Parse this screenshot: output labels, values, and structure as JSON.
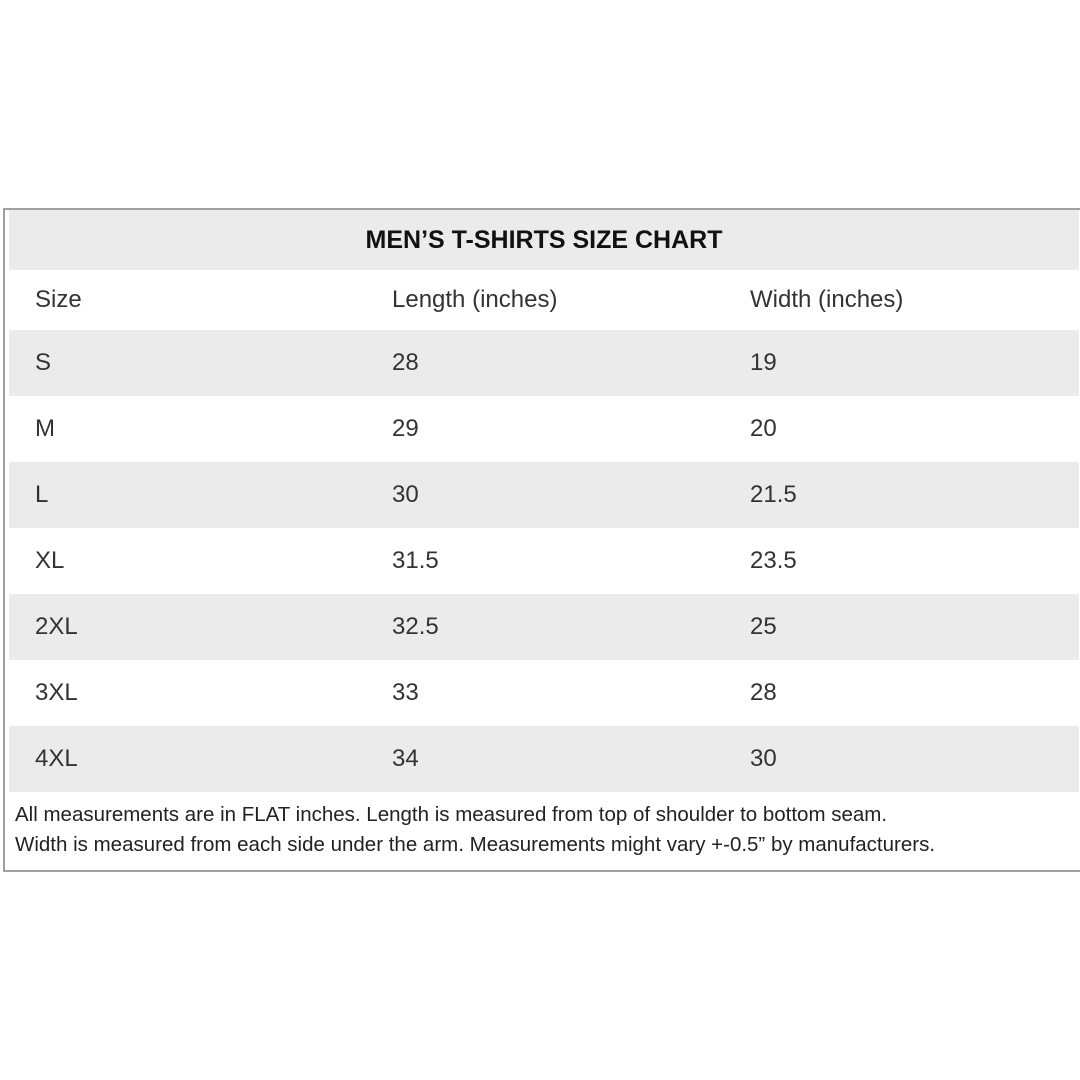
{
  "title": "MEN’S T-SHIRTS SIZE CHART",
  "columns": [
    "Size",
    "Length (inches)",
    "Width (inches)"
  ],
  "rows": [
    [
      "S",
      "28",
      "19"
    ],
    [
      "M",
      "29",
      "20"
    ],
    [
      "L",
      "30",
      "21.5"
    ],
    [
      "XL",
      "31.5",
      "23.5"
    ],
    [
      "2XL",
      "32.5",
      "25"
    ],
    [
      "3XL",
      "33",
      "28"
    ],
    [
      "4XL",
      "34",
      "30"
    ]
  ],
  "footnote": [
    "All measurements are in FLAT inches. Length is measured from top of shoulder to bottom seam.",
    "Width is measured from each side under the arm. Measurements might vary +-0.5” by manufacturers."
  ],
  "colors": {
    "stripe": "#ebebeb",
    "border": "#a0a0a0"
  }
}
